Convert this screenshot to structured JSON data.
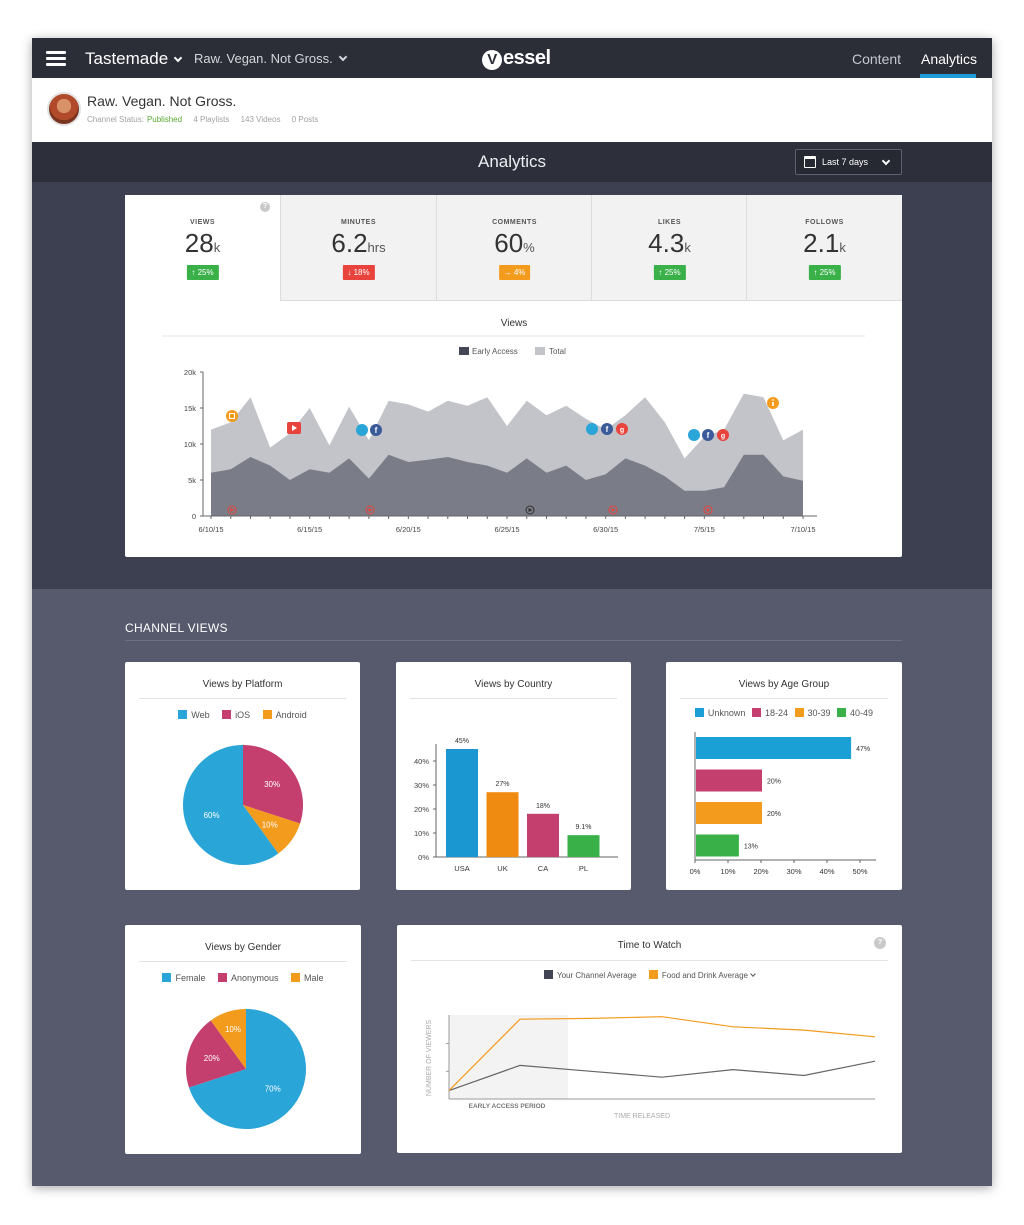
{
  "nav": {
    "brand": "Tastemade",
    "channel": "Raw. Vegan. Not Gross.",
    "logo_text": "essel",
    "logo_mark": "V",
    "links": [
      "Content",
      "Analytics"
    ]
  },
  "channel": {
    "title": "Raw. Vegan. Not Gross.",
    "status_label": "Channel Status:",
    "status": "Published",
    "playlists": "4 Playlists",
    "videos": "143 Videos",
    "posts": "0 Posts"
  },
  "analytics": {
    "title": "Analytics",
    "date_range": "Last 7 days"
  },
  "colors": {
    "green": "#3ab049",
    "red": "#e8433c",
    "orange": "#f39b1d",
    "blue": "#2aa5d8",
    "pink": "#c43e6e",
    "dark": "#434655"
  },
  "metrics": [
    {
      "label": "VIEWS",
      "value": "28",
      "unit": "k",
      "change": "↑ 25%",
      "trend": "up"
    },
    {
      "label": "MINUTES",
      "value": "6.2",
      "unit": "hrs",
      "change": "↓ 18%",
      "trend": "down"
    },
    {
      "label": "COMMENTS",
      "value": "60",
      "unit": "%",
      "change": "→ 4%",
      "trend": "flat"
    },
    {
      "label": "LIKES",
      "value": "4.3",
      "unit": "k",
      "change": "↑ 25%",
      "trend": "up"
    },
    {
      "label": "FOLLOWS",
      "value": "2.1",
      "unit": "k",
      "change": "↑ 25%",
      "trend": "up"
    }
  ],
  "help_glyph": "?",
  "views_chart": {
    "title": "Views",
    "legend": [
      "Early Access",
      "Total"
    ],
    "y_ticks": [
      "0",
      "5k",
      "10k",
      "15k",
      "20k"
    ],
    "x_ticks": [
      "6/10/15",
      "6/15/15",
      "6/20/15",
      "6/25/15",
      "6/30/15",
      "7/5/15",
      "7/10/15"
    ]
  },
  "channel_views": {
    "section_title": "CHANNEL VIEWS",
    "platform": {
      "title": "Views by Platform",
      "legend": [
        "Web",
        "iOS",
        "Android"
      ],
      "labels": [
        "60%",
        "30%",
        "10%"
      ]
    },
    "country": {
      "title": "Views by Country",
      "y_ticks": [
        "0%",
        "10%",
        "20%",
        "30%",
        "40%"
      ],
      "categories": [
        "USA",
        "UK",
        "CA",
        "PL"
      ],
      "labels": [
        "45%",
        "27%",
        "18%",
        "9.1%"
      ]
    },
    "age": {
      "title": "Views by Age Group",
      "legend": [
        "Unknown",
        "18-24",
        "30-39",
        "40-49"
      ],
      "labels": [
        "47%",
        "20%",
        "20%",
        "13%"
      ],
      "x_ticks": [
        "0%",
        "10%",
        "20%",
        "30%",
        "40%",
        "50%"
      ]
    },
    "gender": {
      "title": "Views by Gender",
      "legend": [
        "Female",
        "Anonymous",
        "Male"
      ],
      "labels": [
        "70%",
        "20%",
        "10%"
      ]
    },
    "time_to_watch": {
      "title": "Time to Watch",
      "legend": [
        "Your Channel Average",
        "Food and Drink Average"
      ],
      "ylabel": "NUMBER OF VIEWERS",
      "xlabel": "TIME RELEASED",
      "band_label": "EARLY ACCESS PERIOD"
    }
  },
  "chart_data": [
    {
      "type": "area",
      "title": "Views",
      "ylim": [
        0,
        20000
      ],
      "x": [
        "6/10/15",
        "6/11/15",
        "6/12/15",
        "6/13/15",
        "6/14/15",
        "6/15/15",
        "6/16/15",
        "6/17/15",
        "6/18/15",
        "6/19/15",
        "6/20/15",
        "6/21/15",
        "6/22/15",
        "6/23/15",
        "6/24/15",
        "6/25/15",
        "6/26/15",
        "6/27/15",
        "6/28/15",
        "6/29/15",
        "6/30/15",
        "7/1/15",
        "7/2/15",
        "7/3/15",
        "7/4/15",
        "7/5/15",
        "7/6/15",
        "7/7/15",
        "7/8/15",
        "7/9/15",
        "7/10/15"
      ],
      "series": [
        {
          "name": "Total",
          "values": [
            12000,
            13000,
            16500,
            9500,
            11500,
            15000,
            9800,
            15200,
            10500,
            16000,
            15500,
            14500,
            16000,
            15300,
            16500,
            12500,
            16000,
            14000,
            15300,
            13500,
            12000,
            14000,
            16500,
            13000,
            8000,
            11000,
            12000,
            17000,
            16500,
            10500,
            12000
          ]
        },
        {
          "name": "Early Access",
          "values": [
            6000,
            6500,
            8200,
            7000,
            5000,
            6500,
            6000,
            8000,
            5200,
            8500,
            7500,
            7800,
            8200,
            7500,
            7000,
            6000,
            8000,
            6000,
            7000,
            5000,
            5800,
            8000,
            7000,
            5500,
            3500,
            3500,
            4000,
            8500,
            8500,
            5500,
            4900
          ]
        }
      ]
    },
    {
      "type": "pie",
      "title": "Views by Platform",
      "categories": [
        "Web",
        "iOS",
        "Android"
      ],
      "values": [
        60,
        30,
        10
      ]
    },
    {
      "type": "bar",
      "title": "Views by Country",
      "categories": [
        "USA",
        "UK",
        "CA",
        "PL"
      ],
      "values": [
        45,
        27,
        18,
        9.1
      ],
      "ylim": [
        0,
        45
      ]
    },
    {
      "type": "bar",
      "title": "Views by Age Group",
      "categories": [
        "Unknown",
        "18-24",
        "30-39",
        "40-49"
      ],
      "values": [
        47,
        20,
        20,
        13
      ],
      "xlim": [
        0,
        55
      ]
    },
    {
      "type": "pie",
      "title": "Views by Gender",
      "categories": [
        "Female",
        "Anonymous",
        "Male"
      ],
      "values": [
        70,
        20,
        10
      ]
    },
    {
      "type": "line",
      "title": "Time to Watch",
      "ylabel": "NUMBER OF VIEWERS",
      "xlabel": "TIME RELEASED",
      "x": [
        0,
        1,
        2,
        3,
        4,
        5,
        6
      ],
      "series": [
        {
          "name": "Your Channel Average",
          "values": [
            1,
            4,
            3.3,
            2.6,
            3.5,
            2.8,
            4.5
          ]
        },
        {
          "name": "Food and Drink Average",
          "values": [
            1,
            9.5,
            9.6,
            9.8,
            8.6,
            8.2,
            7.4
          ]
        }
      ]
    }
  ]
}
